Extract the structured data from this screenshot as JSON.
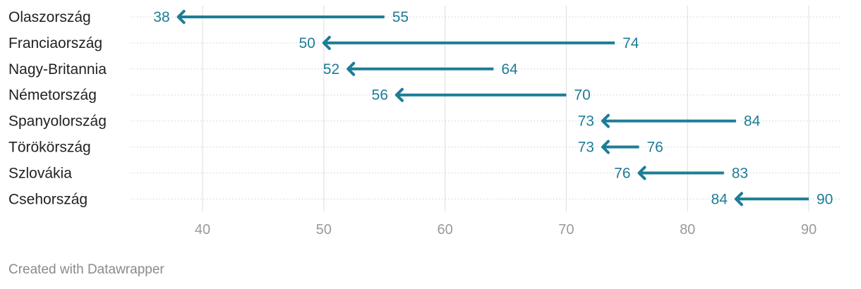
{
  "chart_data": {
    "type": "arrow",
    "title": "",
    "xlabel": "",
    "ylabel": "",
    "xlim": [
      34,
      92
    ],
    "x_ticks": [
      40,
      50,
      60,
      70,
      80,
      90
    ],
    "grid": true,
    "arrow_color": "#1d7d96",
    "categories": [
      "Olaszország",
      "Franciaország",
      "Nagy-Britannia",
      "Németország",
      "Spanyolország",
      "Törökörszág",
      "Szlovákia",
      "Csehország"
    ],
    "series": [
      {
        "values": [
          55,
          74,
          64,
          70,
          84,
          76,
          83,
          90
        ]
      },
      {
        "values": [
          38,
          50,
          52,
          56,
          73,
          73,
          76,
          84
        ]
      }
    ]
  },
  "footer": {
    "credit": "Created with Datawrapper"
  }
}
